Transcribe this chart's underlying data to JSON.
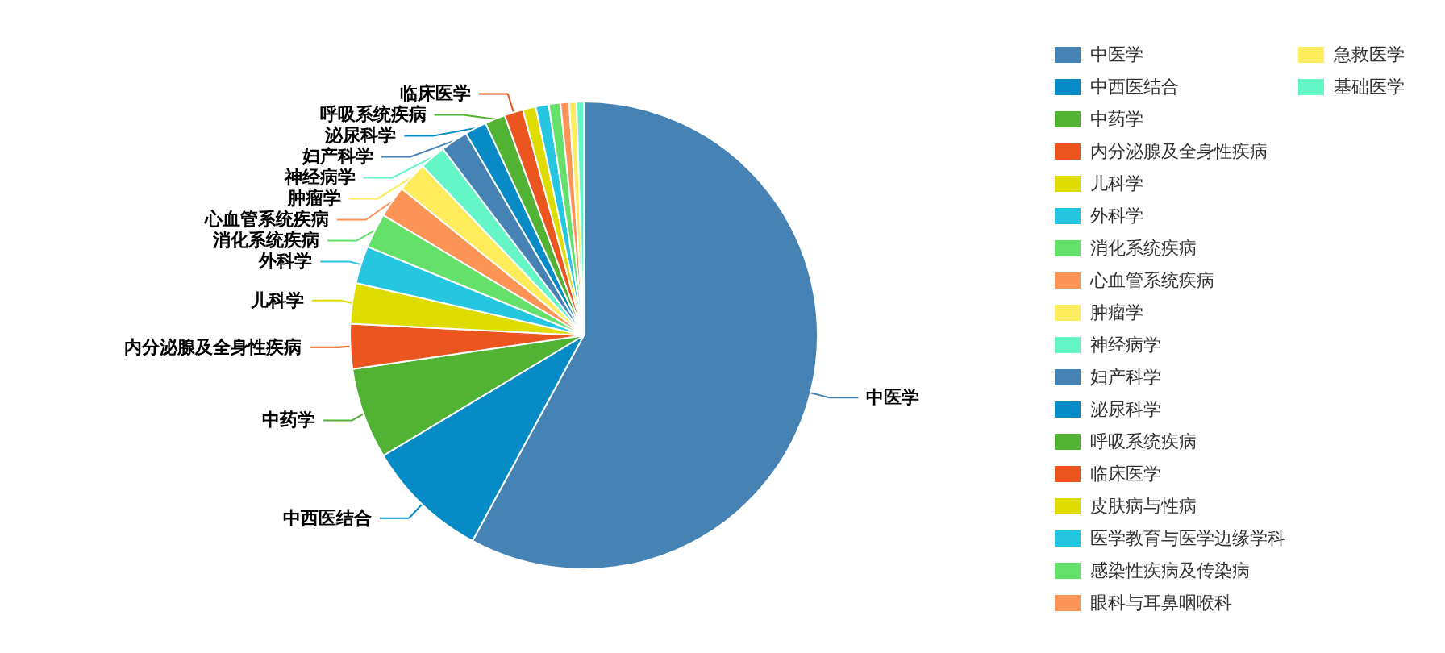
{
  "chart_data": {
    "type": "pie",
    "categories": [
      "中医学",
      "中西医结合",
      "中药学",
      "内分泌腺及全身性疾病",
      "儿科学",
      "外科学",
      "消化系统疾病",
      "心血管系统疾病",
      "肿瘤学",
      "神经病学",
      "妇产科学",
      "泌尿科学",
      "呼吸系统疾病",
      "临床医学",
      "皮肤病与性病",
      "医学教育与医学边缘学科",
      "感染性疾病及传染病",
      "眼科与耳鼻咽喉科",
      "急救医学",
      "基础医学"
    ],
    "values": [
      57.9,
      8.5,
      6.3,
      3.1,
      2.8,
      2.6,
      2.4,
      2.2,
      2.1,
      1.8,
      1.9,
      1.5,
      1.4,
      1.3,
      0.9,
      0.9,
      0.8,
      0.6,
      0.5,
      0.5
    ],
    "colors": [
      "#4682b4",
      "#068bc6",
      "#52b234",
      "#ea5520",
      "#dedc00",
      "#26c6e0",
      "#65e06b",
      "#fd9457",
      "#ffec5c",
      "#64f6c6",
      "#4682b4",
      "#068bc6",
      "#52b234",
      "#ea5520",
      "#dedc00",
      "#26c6e0",
      "#65e06b",
      "#fd9457",
      "#ffec5c",
      "#64f6c6"
    ],
    "legend": "top right"
  }
}
